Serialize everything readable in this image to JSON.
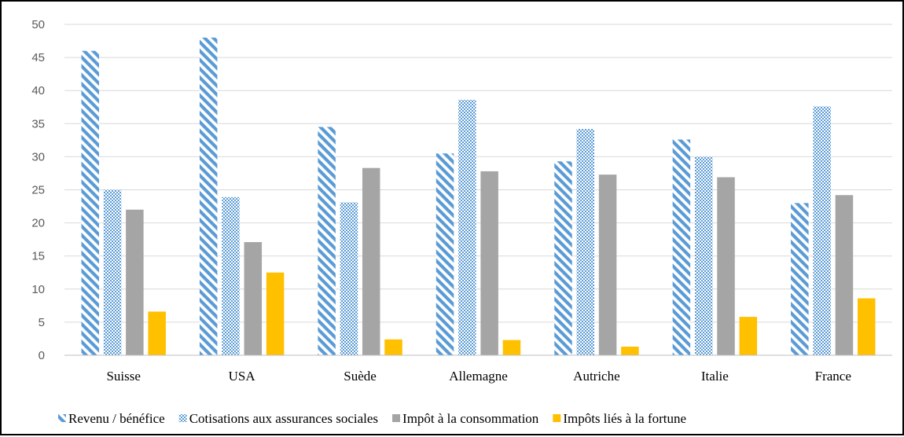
{
  "chart_data": {
    "type": "bar",
    "title": "",
    "xlabel": "",
    "ylabel": "",
    "categories": [
      "Suisse",
      "USA",
      "Suède",
      "Allemagne",
      "Autriche",
      "Italie",
      "France"
    ],
    "ylim": [
      0,
      50
    ],
    "yticks": [
      0,
      5,
      10,
      15,
      20,
      25,
      30,
      35,
      40,
      45,
      50
    ],
    "grid": true,
    "legend_position": "bottom",
    "series": [
      {
        "name": "Revenu / bénéfice",
        "values": [
          46,
          48,
          34.5,
          30.5,
          29.3,
          32.6,
          23
        ],
        "color": "#5B9BD5",
        "pattern": "diagonal-stripes"
      },
      {
        "name": "Cotisations aux assurances sociales",
        "values": [
          25,
          23.9,
          23.1,
          38.6,
          34.2,
          30,
          37.6
        ],
        "color": "#5B9BD5",
        "pattern": "checker"
      },
      {
        "name": "Impôt à la consommation",
        "values": [
          22,
          17.1,
          28.3,
          27.8,
          27.3,
          26.9,
          24.2
        ],
        "color": "#A5A5A5",
        "pattern": "solid"
      },
      {
        "name": "Impôts liés à la fortune",
        "values": [
          6.6,
          12.5,
          2.4,
          2.3,
          1.3,
          5.8,
          8.6
        ],
        "color": "#FFC000",
        "pattern": "solid"
      }
    ]
  }
}
